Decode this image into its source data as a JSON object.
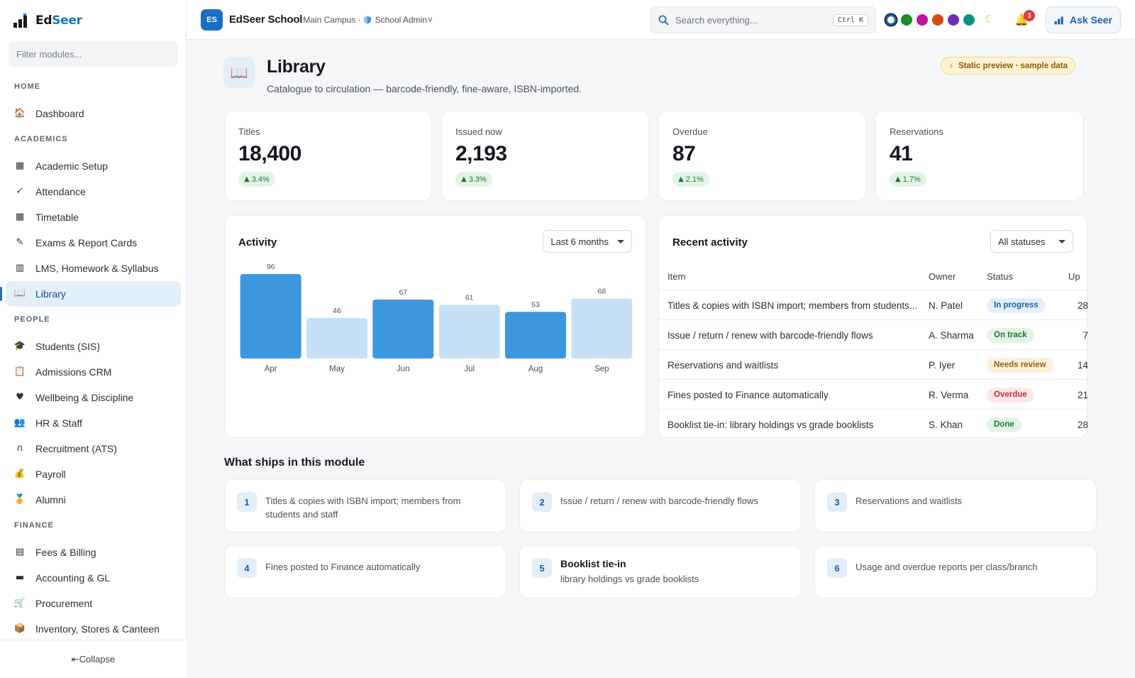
{
  "app": {
    "name_part1": "Ed",
    "name_part2": "Seer"
  },
  "sidebar": {
    "filter_placeholder": "Filter modules...",
    "sections": [
      {
        "title": "HOME",
        "items": [
          {
            "label": "Dashboard",
            "icon": "house-icon",
            "glyph": "🏠"
          }
        ]
      },
      {
        "title": "ACADEMICS",
        "items": [
          {
            "label": "Academic Setup",
            "icon": "calendar-icon",
            "glyph": "▦"
          },
          {
            "label": "Attendance",
            "icon": "checkbox-icon",
            "glyph": "✓"
          },
          {
            "label": "Timetable",
            "icon": "calendar-grid-icon",
            "glyph": "▦"
          },
          {
            "label": "Exams & Report Cards",
            "icon": "report-card-icon",
            "glyph": "✎"
          },
          {
            "label": "LMS, Homework & Syllabus",
            "icon": "books-icon",
            "glyph": "▥"
          },
          {
            "label": "Library",
            "icon": "open-book-icon",
            "glyph": "📖",
            "active": true
          }
        ]
      },
      {
        "title": "PEOPLE",
        "items": [
          {
            "label": "Students (SIS)",
            "icon": "graduation-cap-icon",
            "glyph": "🎓"
          },
          {
            "label": "Admissions CRM",
            "icon": "clipboard-icon",
            "glyph": "📋"
          },
          {
            "label": "Wellbeing & Discipline",
            "icon": "heart-icon",
            "glyph": "♥"
          },
          {
            "label": "HR & Staff",
            "icon": "people-icon",
            "glyph": "👥"
          },
          {
            "label": "Recruitment (ATS)",
            "icon": "magnet-icon",
            "glyph": "∩"
          },
          {
            "label": "Payroll",
            "icon": "money-bag-icon",
            "glyph": "💰"
          },
          {
            "label": "Alumni",
            "icon": "medal-icon",
            "glyph": "🏅"
          }
        ]
      },
      {
        "title": "FINANCE",
        "items": [
          {
            "label": "Fees & Billing",
            "icon": "receipt-icon",
            "glyph": "▤"
          },
          {
            "label": "Accounting & GL",
            "icon": "ledger-icon",
            "glyph": "▬"
          },
          {
            "label": "Procurement",
            "icon": "cart-icon",
            "glyph": "🛒"
          },
          {
            "label": "Inventory, Stores & Canteen",
            "icon": "box-icon",
            "glyph": "📦"
          }
        ]
      }
    ],
    "collapse_label": "⇤Collapse"
  },
  "topbar": {
    "school_initials": "ES",
    "school_name": "EdSeer School",
    "campus": "Main Campus · ",
    "role": "School Admin",
    "role_caret": "˅",
    "search_placeholder": "Search everything...",
    "search_shortcut": "Ctrl K",
    "theme_colors": [
      "#1a5fa8",
      "#1a8a2a",
      "#c0139e",
      "#d8480f",
      "#6b2fb3",
      "#0f8f80"
    ],
    "notification_count": "3",
    "ask_label": "Ask Seer"
  },
  "page": {
    "title": "Library",
    "subtitle": "Catalogue to circulation — barcode-friendly, fine-aware, ISBN-imported.",
    "preview_badge": "Static preview · sample data"
  },
  "kpis": [
    {
      "label": "Titles",
      "value": "18,400",
      "delta": "3.4%"
    },
    {
      "label": "Issued now",
      "value": "2,193",
      "delta": "3.3%"
    },
    {
      "label": "Overdue",
      "value": "87",
      "delta": "2.1%"
    },
    {
      "label": "Reservations",
      "value": "41",
      "delta": "1.7%"
    }
  ],
  "activity": {
    "title": "Activity",
    "range": "Last 6 months"
  },
  "chart_data": {
    "type": "bar",
    "title": "Activity",
    "categories": [
      "Apr",
      "May",
      "Jun",
      "Jul",
      "Aug",
      "Sep"
    ],
    "values": [
      96,
      46,
      67,
      61,
      53,
      68
    ],
    "colors": [
      "#3d97df",
      "#c6e0f6",
      "#3d97df",
      "#c6e0f6",
      "#3d97df",
      "#c6e0f6"
    ],
    "ylim": [
      0,
      96
    ]
  },
  "recent": {
    "title": "Recent activity",
    "filter": "All statuses",
    "columns": [
      "Item",
      "Owner",
      "Status",
      "Up"
    ],
    "rows": [
      {
        "item": "Titles & copies with ISBN import; members from students...",
        "owner": "N. Patel",
        "status": "In progress",
        "tone": "blue",
        "up": "28"
      },
      {
        "item": "Issue / return / renew with barcode-friendly flows",
        "owner": "A. Sharma",
        "status": "On track",
        "tone": "green",
        "up": "7"
      },
      {
        "item": "Reservations and waitlists",
        "owner": "P. Iyer",
        "status": "Needs review",
        "tone": "amber",
        "up": "14"
      },
      {
        "item": "Fines posted to Finance automatically",
        "owner": "R. Verma",
        "status": "Overdue",
        "tone": "red",
        "up": "21"
      },
      {
        "item": "Booklist tie-in: library holdings vs grade booklists",
        "owner": "S. Khan",
        "status": "Done",
        "tone": "green",
        "up": "28"
      }
    ]
  },
  "ships": {
    "title": "What ships in this module",
    "items": [
      {
        "num": "1",
        "heading": "",
        "text": "Titles & copies with ISBN import; members from students and staff"
      },
      {
        "num": "2",
        "heading": "",
        "text": "Issue / return / renew with barcode-friendly flows"
      },
      {
        "num": "3",
        "heading": "",
        "text": "Reservations and waitlists"
      },
      {
        "num": "4",
        "heading": "",
        "text": "Fines posted to Finance automatically"
      },
      {
        "num": "5",
        "heading": "Booklist tie-in",
        "text": "library holdings vs grade booklists"
      },
      {
        "num": "6",
        "heading": "",
        "text": "Usage and overdue reports per class/branch"
      }
    ]
  }
}
